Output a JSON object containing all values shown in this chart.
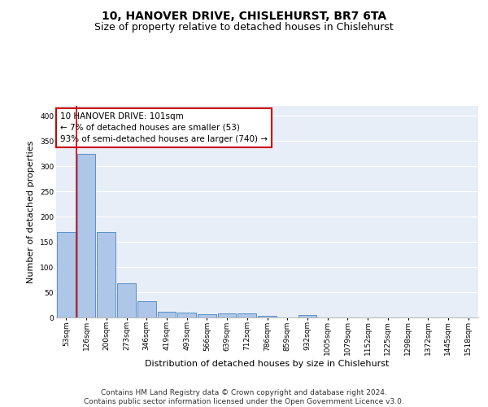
{
  "title": "10, HANOVER DRIVE, CHISLEHURST, BR7 6TA",
  "subtitle": "Size of property relative to detached houses in Chislehurst",
  "xlabel": "Distribution of detached houses by size in Chislehurst",
  "ylabel": "Number of detached properties",
  "categories": [
    "53sqm",
    "126sqm",
    "200sqm",
    "273sqm",
    "346sqm",
    "419sqm",
    "493sqm",
    "566sqm",
    "639sqm",
    "712sqm",
    "786sqm",
    "859sqm",
    "932sqm",
    "1005sqm",
    "1079sqm",
    "1152sqm",
    "1225sqm",
    "1298sqm",
    "1372sqm",
    "1445sqm",
    "1518sqm"
  ],
  "values": [
    170,
    325,
    170,
    68,
    33,
    11,
    9,
    6,
    8,
    8,
    3,
    0,
    5,
    0,
    0,
    0,
    0,
    0,
    0,
    0,
    0
  ],
  "bar_color": "#aec6e8",
  "bar_edge_color": "#5a90c8",
  "vline_color": "#cc0000",
  "annotation_text": "10 HANOVER DRIVE: 101sqm\n← 7% of detached houses are smaller (53)\n93% of semi-detached houses are larger (740) →",
  "annotation_box_color": "#ffffff",
  "annotation_box_edge_color": "#cc0000",
  "ylim": [
    0,
    420
  ],
  "yticks": [
    0,
    50,
    100,
    150,
    200,
    250,
    300,
    350,
    400
  ],
  "background_color": "#e8eef7",
  "grid_color": "#ffffff",
  "footer_text": "Contains HM Land Registry data © Crown copyright and database right 2024.\nContains public sector information licensed under the Open Government Licence v3.0.",
  "title_fontsize": 10,
  "subtitle_fontsize": 9,
  "xlabel_fontsize": 8,
  "ylabel_fontsize": 8,
  "tick_fontsize": 6.5,
  "annotation_fontsize": 7.5,
  "footer_fontsize": 6.5
}
